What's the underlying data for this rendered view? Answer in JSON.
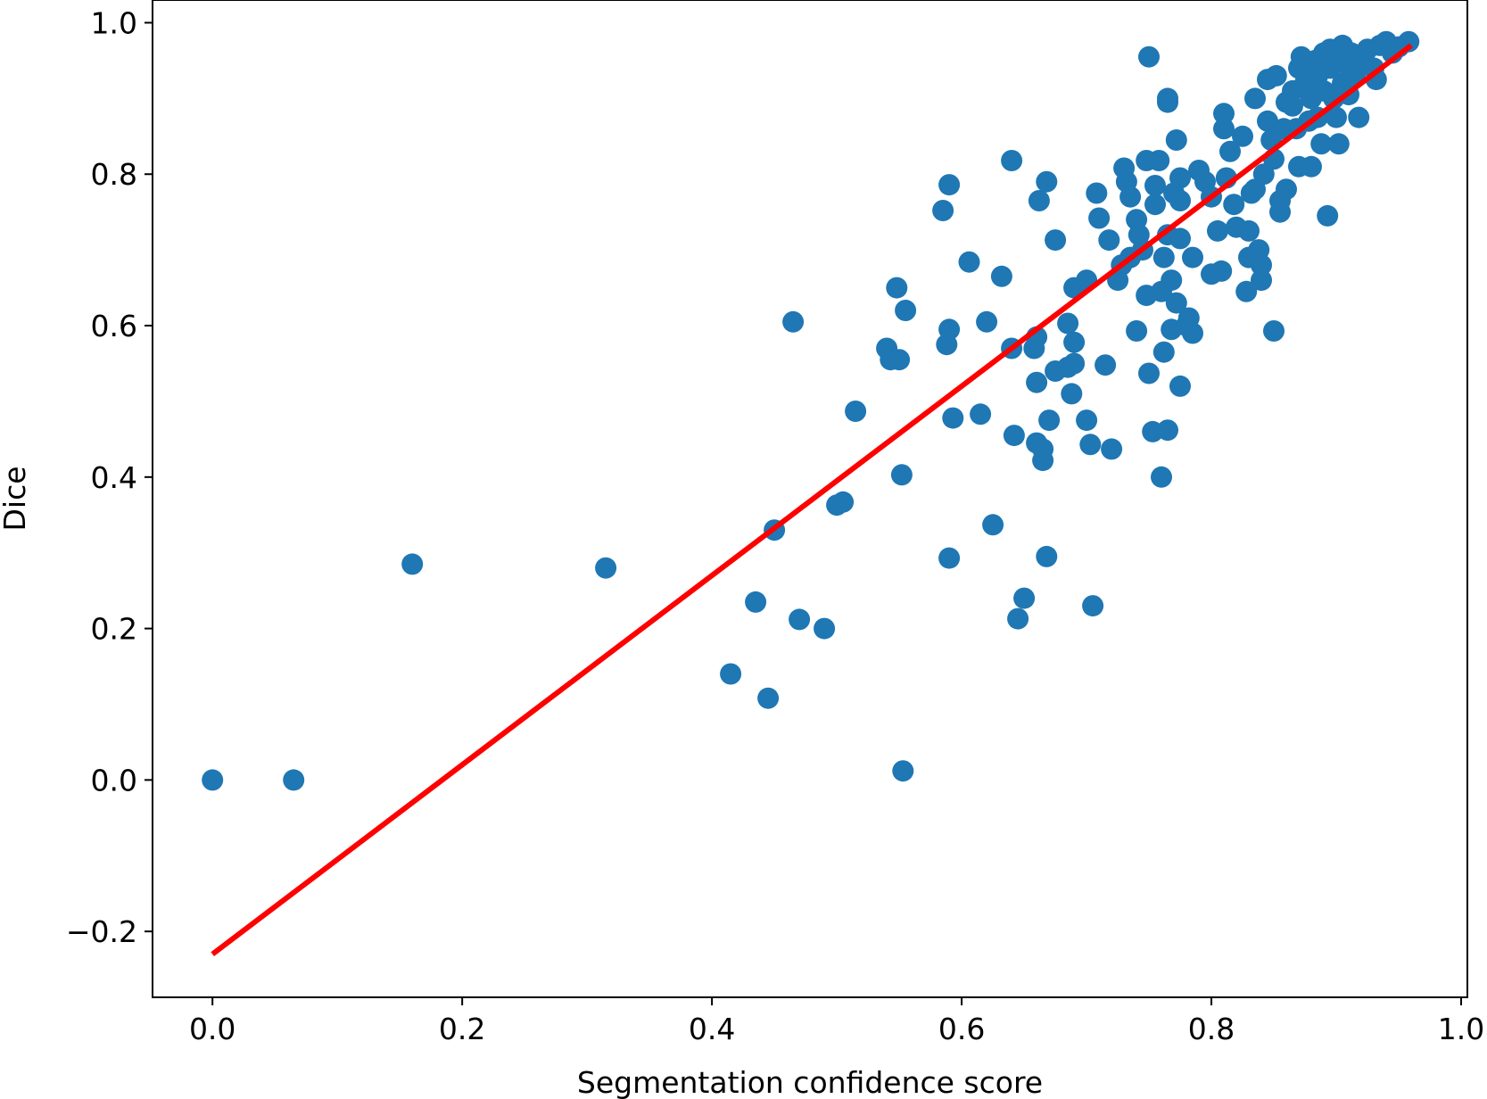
{
  "chart_data": {
    "type": "scatter",
    "title": "",
    "xlabel": "Segmentation confidence score",
    "ylabel": "Dice",
    "xlim": [
      -0.048,
      1.005
    ],
    "ylim": [
      -0.287,
      1.03
    ],
    "xticks": [
      0.0,
      0.2,
      0.4,
      0.6,
      0.8,
      1.0
    ],
    "xtick_labels": [
      "0.0",
      "0.2",
      "0.4",
      "0.6",
      "0.8",
      "1.0"
    ],
    "yticks": [
      -0.2,
      0.0,
      0.2,
      0.4,
      0.6,
      0.8,
      1.0
    ],
    "ytick_labels": [
      "−0.2",
      "0.0",
      "0.2",
      "0.4",
      "0.6",
      "0.8",
      "1.0"
    ],
    "grid": false,
    "point_color": "#1f77b4",
    "line_color": "#ff0000",
    "fit_line": {
      "x": [
        0.0,
        0.96
      ],
      "y": [
        -0.23,
        0.97
      ]
    },
    "series": [
      {
        "points": [
          [
            0.0,
            0.0
          ],
          [
            0.065,
            0.0
          ],
          [
            0.16,
            0.285
          ],
          [
            0.315,
            0.28
          ],
          [
            0.415,
            0.14
          ],
          [
            0.435,
            0.235
          ],
          [
            0.445,
            0.108
          ],
          [
            0.45,
            0.33
          ],
          [
            0.465,
            0.605
          ],
          [
            0.47,
            0.212
          ],
          [
            0.49,
            0.2
          ],
          [
            0.5,
            0.363
          ],
          [
            0.505,
            0.367
          ],
          [
            0.515,
            0.487
          ],
          [
            0.54,
            0.57
          ],
          [
            0.543,
            0.555
          ],
          [
            0.548,
            0.65
          ],
          [
            0.552,
            0.403
          ],
          [
            0.55,
            0.555
          ],
          [
            0.553,
            0.012
          ],
          [
            0.555,
            0.62
          ],
          [
            0.585,
            0.752
          ],
          [
            0.588,
            0.575
          ],
          [
            0.59,
            0.595
          ],
          [
            0.59,
            0.786
          ],
          [
            0.59,
            0.293
          ],
          [
            0.593,
            0.478
          ],
          [
            0.606,
            0.684
          ],
          [
            0.615,
            0.483
          ],
          [
            0.62,
            0.605
          ],
          [
            0.625,
            0.337
          ],
          [
            0.632,
            0.665
          ],
          [
            0.64,
            0.818
          ],
          [
            0.64,
            0.57
          ],
          [
            0.642,
            0.455
          ],
          [
            0.65,
            0.24
          ],
          [
            0.645,
            0.213
          ],
          [
            0.658,
            0.57
          ],
          [
            0.66,
            0.585
          ],
          [
            0.662,
            0.765
          ],
          [
            0.66,
            0.525
          ],
          [
            0.66,
            0.445
          ],
          [
            0.665,
            0.437
          ],
          [
            0.665,
            0.422
          ],
          [
            0.668,
            0.295
          ],
          [
            0.668,
            0.79
          ],
          [
            0.67,
            0.475
          ],
          [
            0.675,
            0.713
          ],
          [
            0.675,
            0.54
          ],
          [
            0.685,
            0.545
          ],
          [
            0.685,
            0.603
          ],
          [
            0.688,
            0.51
          ],
          [
            0.69,
            0.55
          ],
          [
            0.69,
            0.65
          ],
          [
            0.69,
            0.578
          ],
          [
            0.7,
            0.66
          ],
          [
            0.7,
            0.475
          ],
          [
            0.703,
            0.443
          ],
          [
            0.705,
            0.23
          ],
          [
            0.708,
            0.775
          ],
          [
            0.71,
            0.742
          ],
          [
            0.715,
            0.548
          ],
          [
            0.718,
            0.713
          ],
          [
            0.72,
            0.437
          ],
          [
            0.725,
            0.66
          ],
          [
            0.728,
            0.68
          ],
          [
            0.73,
            0.808
          ],
          [
            0.732,
            0.79
          ],
          [
            0.735,
            0.77
          ],
          [
            0.735,
            0.69
          ],
          [
            0.74,
            0.593
          ],
          [
            0.74,
            0.74
          ],
          [
            0.742,
            0.72
          ],
          [
            0.745,
            0.7
          ],
          [
            0.748,
            0.64
          ],
          [
            0.748,
            0.818
          ],
          [
            0.75,
            0.955
          ],
          [
            0.75,
            0.537
          ],
          [
            0.753,
            0.46
          ],
          [
            0.755,
            0.785
          ],
          [
            0.755,
            0.76
          ],
          [
            0.758,
            0.818
          ],
          [
            0.76,
            0.645
          ],
          [
            0.76,
            0.4
          ],
          [
            0.762,
            0.69
          ],
          [
            0.762,
            0.565
          ],
          [
            0.765,
            0.9
          ],
          [
            0.765,
            0.895
          ],
          [
            0.765,
            0.462
          ],
          [
            0.765,
            0.72
          ],
          [
            0.768,
            0.66
          ],
          [
            0.768,
            0.595
          ],
          [
            0.77,
            0.775
          ],
          [
            0.772,
            0.845
          ],
          [
            0.772,
            0.63
          ],
          [
            0.775,
            0.52
          ],
          [
            0.775,
            0.795
          ],
          [
            0.775,
            0.765
          ],
          [
            0.775,
            0.715
          ],
          [
            0.78,
            0.6
          ],
          [
            0.782,
            0.61
          ],
          [
            0.785,
            0.59
          ],
          [
            0.785,
            0.69
          ],
          [
            0.79,
            0.805
          ],
          [
            0.795,
            0.79
          ],
          [
            0.8,
            0.77
          ],
          [
            0.8,
            0.668
          ],
          [
            0.805,
            0.725
          ],
          [
            0.808,
            0.672
          ],
          [
            0.81,
            0.88
          ],
          [
            0.81,
            0.86
          ],
          [
            0.812,
            0.795
          ],
          [
            0.815,
            0.83
          ],
          [
            0.818,
            0.76
          ],
          [
            0.82,
            0.73
          ],
          [
            0.825,
            0.85
          ],
          [
            0.828,
            0.645
          ],
          [
            0.83,
            0.69
          ],
          [
            0.83,
            0.725
          ],
          [
            0.832,
            0.775
          ],
          [
            0.835,
            0.9
          ],
          [
            0.835,
            0.78
          ],
          [
            0.838,
            0.7
          ],
          [
            0.84,
            0.68
          ],
          [
            0.84,
            0.66
          ],
          [
            0.842,
            0.8
          ],
          [
            0.845,
            0.925
          ],
          [
            0.845,
            0.87
          ],
          [
            0.848,
            0.845
          ],
          [
            0.85,
            0.82
          ],
          [
            0.85,
            0.593
          ],
          [
            0.852,
            0.93
          ],
          [
            0.855,
            0.765
          ],
          [
            0.855,
            0.75
          ],
          [
            0.858,
            0.86
          ],
          [
            0.86,
            0.895
          ],
          [
            0.86,
            0.78
          ],
          [
            0.865,
            0.91
          ],
          [
            0.865,
            0.89
          ],
          [
            0.868,
            0.86
          ],
          [
            0.87,
            0.94
          ],
          [
            0.87,
            0.81
          ],
          [
            0.872,
            0.955
          ],
          [
            0.875,
            0.92
          ],
          [
            0.878,
            0.87
          ],
          [
            0.88,
            0.9
          ],
          [
            0.88,
            0.81
          ],
          [
            0.883,
            0.95
          ],
          [
            0.885,
            0.93
          ],
          [
            0.885,
            0.875
          ],
          [
            0.888,
            0.84
          ],
          [
            0.89,
            0.96
          ],
          [
            0.89,
            0.91
          ],
          [
            0.893,
            0.745
          ],
          [
            0.895,
            0.965
          ],
          [
            0.895,
            0.94
          ],
          [
            0.898,
            0.9
          ],
          [
            0.9,
            0.955
          ],
          [
            0.9,
            0.875
          ],
          [
            0.902,
            0.84
          ],
          [
            0.905,
            0.97
          ],
          [
            0.905,
            0.92
          ],
          [
            0.908,
            0.945
          ],
          [
            0.91,
            0.905
          ],
          [
            0.912,
            0.96
          ],
          [
            0.915,
            0.93
          ],
          [
            0.918,
            0.875
          ],
          [
            0.92,
            0.95
          ],
          [
            0.925,
            0.965
          ],
          [
            0.93,
            0.94
          ],
          [
            0.932,
            0.925
          ],
          [
            0.935,
            0.97
          ],
          [
            0.94,
            0.975
          ],
          [
            0.945,
            0.96
          ],
          [
            0.95,
            0.968
          ],
          [
            0.958,
            0.975
          ]
        ]
      }
    ]
  }
}
